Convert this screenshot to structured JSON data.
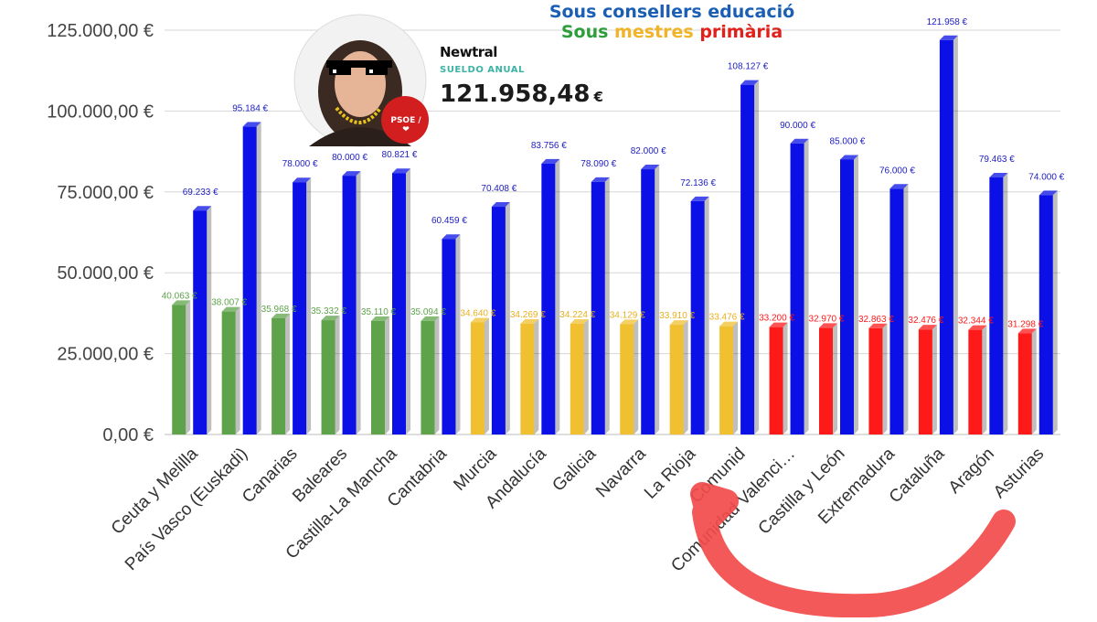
{
  "chart_data": {
    "type": "bar",
    "title": "Sous consellers educació",
    "subtitle_words": [
      "Sous",
      "mestres",
      "primària"
    ],
    "categories": [
      "Ceuta y Melilla",
      "País Vasco (Euskadi)",
      "Canarias",
      "Baleares",
      "Castilla-La Mancha",
      "Cantabria",
      "Murcia",
      "Andalucía",
      "Galicia",
      "Navarra",
      "La Rioja",
      "Comunidad de Madrid",
      "Comunidad Valenciana",
      "Castilla y León",
      "Extremadura",
      "Cataluña",
      "Aragón",
      "Asturias"
    ],
    "category_tick_labels": [
      "Ceuta y Melilla",
      "País Vasco (Euskadi)",
      "Canarias",
      "Baleares",
      "Castilla-La Mancha",
      "Cantabria",
      "Murcia",
      "Andalucía",
      "Galicia",
      "Navarra",
      "La Rioja",
      "Comunid",
      "Comunidad Valenci…",
      "Castilla y León",
      "Extremadura",
      "Cataluña",
      "Aragón",
      "Asturias"
    ],
    "series": [
      {
        "values": [
          40063,
          38007,
          35968,
          35332,
          35110,
          35094,
          34640,
          34269,
          34224,
          34129,
          33910,
          33476,
          33200,
          32970,
          32863,
          32476,
          32344,
          31298
        ],
        "labels": [
          "40.063 €",
          "38.007 €",
          "35.968 €",
          "35.332 €",
          "35.110 €",
          "35.094 €",
          "34.640 €",
          "34.269 €",
          "34.224 €",
          "34.129 €",
          "33.910 €",
          "33.476 €",
          "33.200 €",
          "32.970 €",
          "32.863 €",
          "32.476 €",
          "32.344 €",
          "31.298 €"
        ],
        "colors": [
          "#5ea34a",
          "#5ea34a",
          "#5ea34a",
          "#5ea34a",
          "#5ea34a",
          "#5ea34a",
          "#f0c030",
          "#f0c030",
          "#f0c030",
          "#f0c030",
          "#f0c030",
          "#f0c030",
          "#ff1a1a",
          "#ff1a1a",
          "#ff1a1a",
          "#ff1a1a",
          "#ff1a1a",
          "#ff1a1a"
        ],
        "label_colors": [
          "#5ea34a",
          "#5ea34a",
          "#5ea34a",
          "#5ea34a",
          "#5ea34a",
          "#5ea34a",
          "#e8b020",
          "#e8b020",
          "#e8b020",
          "#e8b020",
          "#e8b020",
          "#e8b020",
          "#ff1a1a",
          "#ff1a1a",
          "#ff1a1a",
          "#ff1a1a",
          "#ff1a1a",
          "#ff1a1a"
        ]
      },
      {
        "values": [
          69233,
          95184,
          78000,
          80000,
          80821,
          60459,
          70408,
          83756,
          78090,
          82000,
          72136,
          108127,
          90000,
          85000,
          76000,
          121958,
          79463,
          74000
        ],
        "labels": [
          "69.233 €",
          "95.184 €",
          "78.000 €",
          "80.000 €",
          "80.821 €",
          "60.459 €",
          "70.408 €",
          "83.756 €",
          "78.090 €",
          "82.000 €",
          "72.136 €",
          "108.127 €",
          "90.000 €",
          "85.000 €",
          "76.000 €",
          "121.958 €",
          "79.463 €",
          "74.000 €"
        ],
        "color": "#0a10e6",
        "label_color": "#2020c0"
      }
    ],
    "yticks": [
      0,
      25000,
      50000,
      75000,
      100000,
      125000
    ],
    "ytick_labels": [
      "0,00 €",
      "25.000,00 €",
      "50.000,00 €",
      "75.000,00 €",
      "100.000,00 €",
      "125.000,00 €"
    ],
    "ylim": [
      0,
      125000
    ],
    "grid": true,
    "legend": "none"
  },
  "badge": {
    "brand": "Newtral",
    "caption": "SUELDO ANUAL",
    "amount": "121.958,48",
    "unit": "€",
    "party": "PSOE / ❤"
  },
  "colors": {
    "title_blue": "#1a5fb4",
    "green": "#5ea34a",
    "yellow": "#f0c030",
    "red": "#ff1a1a",
    "blue": "#0a10e6",
    "arrow": "#f24b4b"
  },
  "icons": [
    "portrait-photo",
    "pixel-sunglasses-icon",
    "gold-chain-icon",
    "party-heart-icon",
    "curved-red-arrow"
  ]
}
